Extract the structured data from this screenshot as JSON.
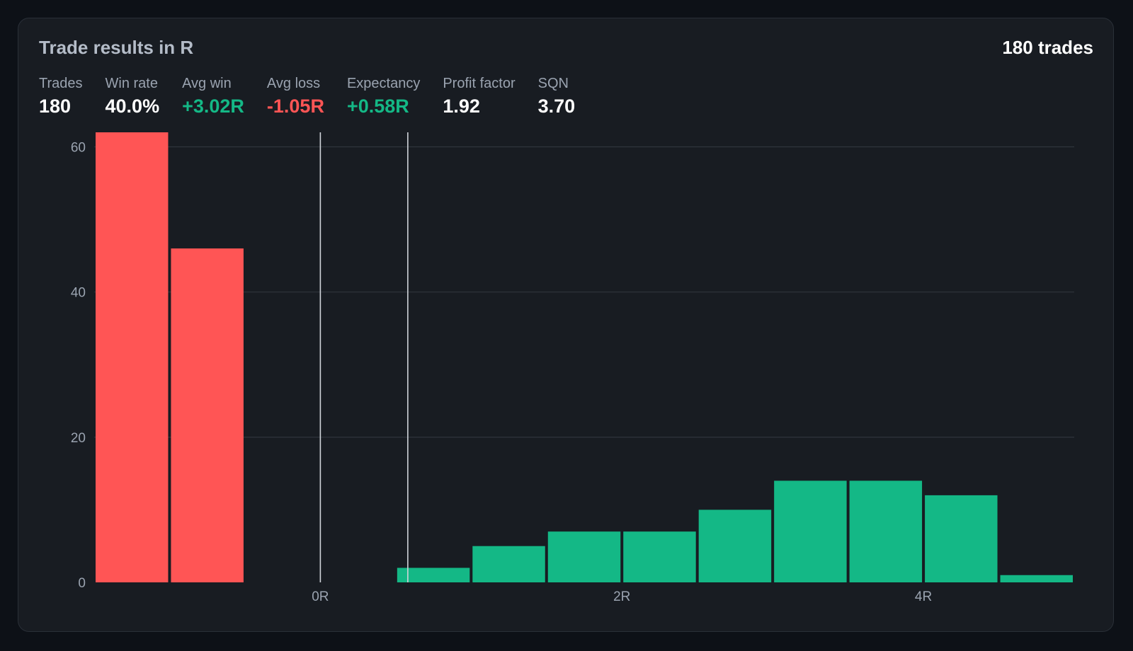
{
  "header": {
    "title": "Trade results in R",
    "count_label": "180 trades"
  },
  "stats": [
    {
      "label": "Trades",
      "value": "180",
      "tone": "neutral"
    },
    {
      "label": "Win rate",
      "value": "40.0%",
      "tone": "neutral"
    },
    {
      "label": "Avg win",
      "value": "+3.02R",
      "tone": "pos"
    },
    {
      "label": "Avg loss",
      "value": "-1.05R",
      "tone": "neg"
    },
    {
      "label": "Expectancy",
      "value": "+0.58R",
      "tone": "pos"
    },
    {
      "label": "Profit factor",
      "value": "1.92",
      "tone": "neutral"
    },
    {
      "label": "SQN",
      "value": "3.70",
      "tone": "neutral"
    }
  ],
  "colors": {
    "loss": "#ff5555",
    "win": "#14b886",
    "grid": "#2f353d",
    "marker": "#d0d4da"
  },
  "chart_data": {
    "type": "bar",
    "title": "Trade results in R",
    "xlabel": "",
    "ylabel": "",
    "xlim": [
      -1.5,
      5.0
    ],
    "ylim": [
      0,
      62
    ],
    "yticks": [
      0,
      20,
      40,
      60
    ],
    "xticks": [
      {
        "value": 0,
        "label": "0R"
      },
      {
        "value": 2,
        "label": "2R"
      },
      {
        "value": 4,
        "label": "4R"
      }
    ],
    "bin_width": 0.5,
    "bins": [
      {
        "start": -1.5,
        "count": 62,
        "side": "loss"
      },
      {
        "start": -1.0,
        "count": 46,
        "side": "loss"
      },
      {
        "start": 0.5,
        "count": 2,
        "side": "win"
      },
      {
        "start": 1.0,
        "count": 5,
        "side": "win"
      },
      {
        "start": 1.5,
        "count": 7,
        "side": "win"
      },
      {
        "start": 2.0,
        "count": 7,
        "side": "win"
      },
      {
        "start": 2.5,
        "count": 10,
        "side": "win"
      },
      {
        "start": 3.0,
        "count": 14,
        "side": "win"
      },
      {
        "start": 3.5,
        "count": 14,
        "side": "win"
      },
      {
        "start": 4.0,
        "count": 12,
        "side": "win"
      },
      {
        "start": 4.5,
        "count": 1,
        "side": "win"
      }
    ],
    "reference_lines": [
      0,
      0.58
    ],
    "grid": true,
    "legend": "none"
  }
}
